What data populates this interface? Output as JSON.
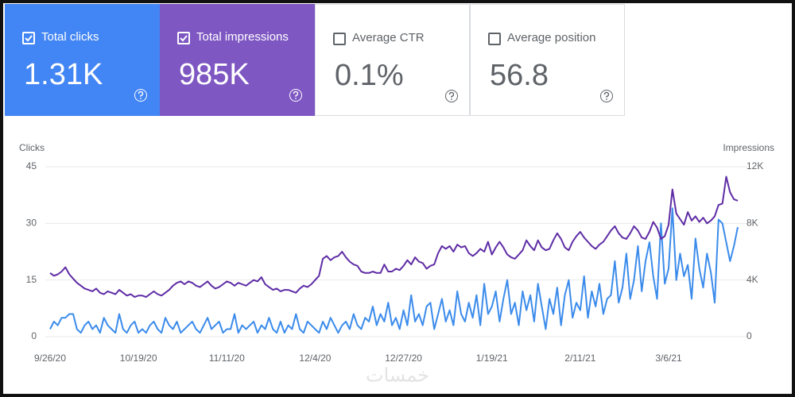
{
  "cards": [
    {
      "label": "Total clicks",
      "value": "1.31K",
      "checked": true,
      "color": "#4285f4"
    },
    {
      "label": "Total impressions",
      "value": "985K",
      "checked": true,
      "color": "#7e57c2"
    },
    {
      "label": "Average CTR",
      "value": "0.1%",
      "checked": false,
      "color": "#ffffff"
    },
    {
      "label": "Average position",
      "value": "56.8",
      "checked": false,
      "color": "#ffffff"
    }
  ],
  "watermark": "خمسات",
  "chart_data": {
    "type": "line",
    "y_label": "Clicks",
    "y2_label": "Impressions",
    "ylim": [
      0,
      45
    ],
    "yticks": [
      0,
      15,
      30,
      45
    ],
    "y2lim": [
      0,
      12000
    ],
    "y2ticks": [
      0,
      {
        "value": 4000,
        "label": "4K"
      },
      {
        "value": 8000,
        "label": "8K"
      },
      {
        "value": 12000,
        "label": "12K"
      }
    ],
    "grid": true,
    "categories": [
      "9/26/20",
      null,
      null,
      null,
      null,
      null,
      null,
      null,
      null,
      null,
      null,
      null,
      null,
      null,
      null,
      null,
      null,
      null,
      null,
      null,
      null,
      null,
      null,
      "10/19/20",
      null,
      null,
      null,
      null,
      null,
      null,
      null,
      null,
      null,
      null,
      null,
      null,
      null,
      null,
      null,
      null,
      null,
      null,
      null,
      null,
      null,
      null,
      "11/11/20",
      null,
      null,
      null,
      null,
      null,
      null,
      null,
      null,
      null,
      null,
      null,
      null,
      null,
      null,
      null,
      null,
      null,
      null,
      null,
      null,
      null,
      null,
      "12/4/20",
      null,
      null,
      null,
      null,
      null,
      null,
      null,
      null,
      null,
      null,
      null,
      null,
      null,
      null,
      null,
      null,
      null,
      null,
      null,
      null,
      null,
      null,
      "12/27/20",
      null,
      null,
      null,
      null,
      null,
      null,
      null,
      null,
      null,
      null,
      null,
      null,
      null,
      null,
      null,
      null,
      null,
      null,
      null,
      null,
      null,
      null,
      "1/19/21",
      null,
      null,
      null,
      null,
      null,
      null,
      null,
      null,
      null,
      null,
      null,
      null,
      null,
      null,
      null,
      null,
      null,
      null,
      null,
      null,
      null,
      null,
      "2/11/21",
      null,
      null,
      null,
      null,
      null,
      null,
      null,
      null,
      null,
      null,
      null,
      null,
      null,
      null,
      null,
      null,
      null,
      null,
      null,
      null,
      null,
      null,
      "3/6/21",
      null,
      null,
      null,
      null,
      null,
      null,
      null,
      null,
      null,
      null,
      null,
      null,
      null,
      null,
      null,
      null,
      null,
      null
    ],
    "series": [
      {
        "name": "Clicks",
        "color": "#3b8beb",
        "axis": "y",
        "values": [
          2,
          4,
          3,
          5,
          5,
          6,
          6,
          2,
          1,
          3,
          4,
          2,
          3,
          1,
          5,
          3,
          2,
          1,
          6,
          2,
          1,
          3,
          4,
          1,
          2,
          1,
          3,
          4,
          2,
          1,
          5,
          3,
          2,
          4,
          1,
          2,
          3,
          4,
          2,
          1,
          3,
          5,
          2,
          3,
          4,
          1,
          2,
          2,
          6,
          1,
          3,
          2,
          3,
          4,
          1,
          3,
          2,
          5,
          2,
          1,
          4,
          1,
          3,
          2,
          6,
          2,
          1,
          4,
          3,
          2,
          1,
          4,
          2,
          5,
          3,
          1,
          3,
          4,
          2,
          6,
          3,
          2,
          5,
          4,
          8,
          3,
          6,
          4,
          9,
          3,
          5,
          2,
          7,
          3,
          11,
          4,
          6,
          3,
          8,
          9,
          2,
          6,
          10,
          4,
          7,
          3,
          12,
          6,
          4,
          9,
          5,
          11,
          3,
          14,
          6,
          8,
          12,
          4,
          10,
          15,
          6,
          9,
          3,
          12,
          7,
          11,
          4,
          14,
          8,
          2,
          10,
          6,
          13,
          3,
          11,
          15,
          5,
          9,
          7,
          16,
          5,
          12,
          8,
          14,
          6,
          10,
          11,
          20,
          9,
          13,
          22,
          10,
          15,
          24,
          12,
          20,
          25,
          16,
          10,
          30,
          14,
          18,
          34,
          15,
          22,
          16,
          19,
          10,
          26,
          18,
          13,
          22,
          17,
          9,
          31,
          30,
          25,
          20,
          24,
          29
        ]
      },
      {
        "name": "Impressions",
        "color": "#5e2ca5",
        "axis": "y2",
        "values": [
          4500,
          4300,
          4400,
          4600,
          4900,
          4400,
          4100,
          3800,
          3600,
          3400,
          3300,
          3200,
          3400,
          3100,
          3000,
          3200,
          3100,
          3000,
          3300,
          3100,
          2900,
          3000,
          2800,
          2900,
          2900,
          2800,
          3000,
          3200,
          3000,
          2900,
          3100,
          3300,
          3600,
          3800,
          3900,
          3700,
          3900,
          3800,
          3600,
          3500,
          3700,
          3900,
          3600,
          3400,
          3500,
          3700,
          3900,
          3800,
          3600,
          3800,
          3700,
          3600,
          3800,
          4000,
          3900,
          4200,
          3700,
          3500,
          3300,
          3400,
          3200,
          3300,
          3300,
          3200,
          3100,
          3400,
          3600,
          3500,
          3700,
          4000,
          4300,
          5500,
          5700,
          5400,
          5600,
          5700,
          6000,
          5600,
          5300,
          5100,
          5000,
          4600,
          4500,
          4500,
          4600,
          4500,
          4500,
          5100,
          4600,
          4600,
          4800,
          4700,
          5000,
          5400,
          5100,
          5600,
          5300,
          5200,
          4800,
          5000,
          5100,
          5900,
          6400,
          6200,
          6400,
          6000,
          6500,
          6300,
          6400,
          5900,
          5700,
          5900,
          6200,
          6000,
          6700,
          5800,
          6300,
          6700,
          6300,
          5800,
          5600,
          5500,
          5800,
          6100,
          6800,
          6400,
          6100,
          6800,
          6300,
          6100,
          6200,
          6800,
          7300,
          6900,
          6300,
          6100,
          6700,
          7100,
          7400,
          7000,
          6700,
          6400,
          6200,
          6500,
          6700,
          7100,
          7500,
          7800,
          7300,
          7000,
          6900,
          7300,
          7800,
          7500,
          7000,
          6900,
          7400,
          8100,
          7700,
          6900,
          7100,
          7900,
          10400,
          8700,
          8300,
          7900,
          8800,
          8200,
          8500,
          8100,
          8400,
          8000,
          8200,
          8500,
          9300,
          9400,
          11300,
          10200,
          9700,
          9600
        ]
      }
    ]
  }
}
